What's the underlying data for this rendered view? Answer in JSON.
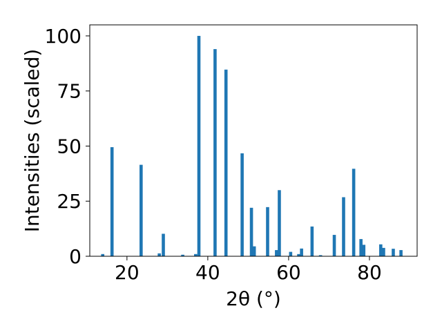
{
  "chart_data": {
    "type": "bar",
    "xlabel": "2θ (°)",
    "ylabel": "Intensities (scaled)",
    "xlim": [
      10.8,
      91.8
    ],
    "ylim": [
      0,
      105
    ],
    "xticks": [
      20,
      40,
      60,
      80
    ],
    "yticks": [
      0,
      25,
      50,
      75,
      100
    ],
    "grid": false,
    "bar_color": "#1f77b4",
    "x": [
      14.0,
      16.3,
      23.5,
      28.0,
      29.0,
      33.8,
      37.0,
      37.8,
      41.8,
      44.5,
      48.5,
      50.8,
      51.5,
      54.8,
      57.0,
      57.7,
      60.5,
      62.5,
      63.2,
      65.8,
      67.9,
      71.3,
      73.6,
      76.1,
      77.9,
      78.6,
      82.8,
      83.5,
      85.9,
      87.8
    ],
    "values": [
      1,
      49.5,
      41.5,
      1.3,
      10.2,
      0.7,
      1,
      100,
      94,
      84.7,
      46.7,
      22,
      4.5,
      22.3,
      2.8,
      30,
      2,
      1,
      3.5,
      13.5,
      0.5,
      9.7,
      26.8,
      39.7,
      7.8,
      5.2,
      5.4,
      3.8,
      3.4,
      2.8
    ]
  }
}
